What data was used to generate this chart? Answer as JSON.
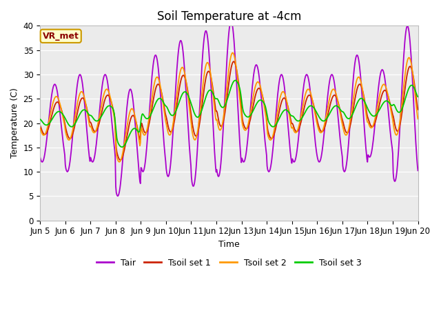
{
  "title": "Soil Temperature at -4cm",
  "xlabel": "Time",
  "ylabel": "Temperature (C)",
  "ylim": [
    0,
    40
  ],
  "line_colors": {
    "Tair": "#aa00cc",
    "Tsoil set 1": "#cc2200",
    "Tsoil set 2": "#ff9900",
    "Tsoil set 3": "#00cc00"
  },
  "legend_labels": [
    "Tair",
    "Tsoil set 1",
    "Tsoil set 2",
    "Tsoil set 3"
  ],
  "annotation_text": "VR_met",
  "annotation_bg": "#ffffcc",
  "annotation_border": "#cc9900",
  "bg_color": "#ebebeb",
  "fig_bg": "#ffffff",
  "title_fontsize": 12,
  "axis_fontsize": 9,
  "tick_fontsize": 8.5,
  "legend_fontsize": 9,
  "x_tick_labels": [
    "Jun 5",
    "Jun 6",
    "Jun 7",
    "Jun 8",
    "Jun 9",
    "Jun 10",
    "Jun 11",
    "Jun 12",
    "Jun 13",
    "Jun 14",
    "Jun 15",
    "Jun 16",
    "Jun 17",
    "Jun 18",
    "Jun 19",
    "Jun 20"
  ]
}
